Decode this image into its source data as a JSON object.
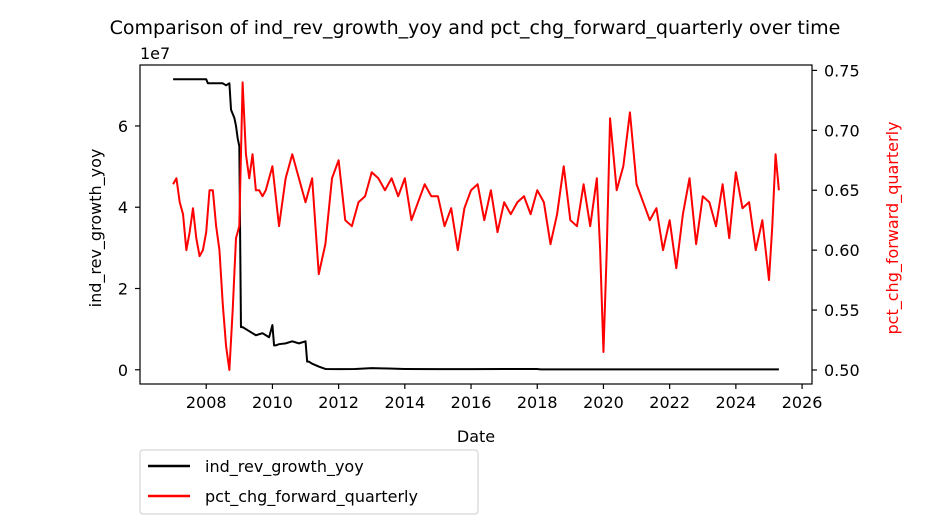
{
  "chart_data": {
    "type": "line",
    "title": "Comparison of ind_rev_growth_yoy and pct_chg_forward_quarterly over time",
    "xlabel": "Date",
    "ylabel_left": "ind_rev_growth_yoy",
    "ylabel_right": "pct_chg_forward_quarterly",
    "left_axis_offset_label": "1e7",
    "xlim": [
      2006.0,
      2026.3
    ],
    "ylim_left": [
      -3500000,
      75000000
    ],
    "ylim_right": [
      0.4883,
      0.7545
    ],
    "x_ticks": [
      "2008",
      "2010",
      "2012",
      "2014",
      "2016",
      "2018",
      "2020",
      "2022",
      "2024",
      "2026"
    ],
    "x_tick_values": [
      2008,
      2010,
      2012,
      2014,
      2016,
      2018,
      2020,
      2022,
      2024,
      2026
    ],
    "y_left_ticks": [
      "0",
      "2",
      "4",
      "6"
    ],
    "y_left_tick_values": [
      0,
      20000000,
      40000000,
      60000000
    ],
    "y_right_ticks": [
      "0.50",
      "0.55",
      "0.60",
      "0.65",
      "0.70",
      "0.75"
    ],
    "y_right_tick_values": [
      0.5,
      0.55,
      0.6,
      0.65,
      0.7,
      0.75
    ],
    "grid": false,
    "legend_position": "below-left",
    "colors": {
      "ind_rev_growth_yoy": "#000000",
      "pct_chg_forward_quarterly": "#ff0000"
    },
    "series": [
      {
        "name": "ind_rev_growth_yoy",
        "axis": "left",
        "x": [
          2007.0,
          2008.0,
          2008.05,
          2008.5,
          2008.6,
          2008.7,
          2008.75,
          2008.85,
          2008.9,
          2008.95,
          2009.0,
          2009.05,
          2009.1,
          2009.3,
          2009.5,
          2009.7,
          2009.9,
          2010.0,
          2010.05,
          2010.1,
          2010.2,
          2010.4,
          2010.6,
          2010.8,
          2011.0,
          2011.05,
          2011.1,
          2011.2,
          2011.4,
          2011.6,
          2012.0,
          2012.5,
          2013.0,
          2013.5,
          2014.0,
          2015.0,
          2016.0,
          2017.0,
          2018.0,
          2018.1,
          2019.0,
          2020.0,
          2021.0,
          2022.0,
          2023.0,
          2024.0,
          2025.0,
          2025.3
        ],
        "values": [
          71500000,
          71500000,
          70500000,
          70500000,
          70000000,
          70500000,
          64000000,
          62000000,
          60000000,
          57000000,
          55000000,
          10500000,
          10500000,
          9500000,
          8500000,
          9000000,
          8000000,
          11000000,
          6000000,
          6000000,
          6300000,
          6500000,
          7000000,
          6500000,
          7000000,
          2000000,
          2000000,
          1500000,
          800000,
          200000,
          150000,
          200000,
          400000,
          300000,
          200000,
          150000,
          150000,
          200000,
          200000,
          100000,
          100000,
          100000,
          100000,
          100000,
          100000,
          100000,
          100000,
          100000
        ]
      },
      {
        "name": "pct_chg_forward_quarterly",
        "axis": "right",
        "x": [
          2007.0,
          2007.1,
          2007.2,
          2007.3,
          2007.4,
          2007.5,
          2007.6,
          2007.7,
          2007.8,
          2007.9,
          2008.0,
          2008.1,
          2008.2,
          2008.3,
          2008.4,
          2008.5,
          2008.6,
          2008.7,
          2008.8,
          2008.9,
          2009.0,
          2009.1,
          2009.2,
          2009.3,
          2009.4,
          2009.5,
          2009.6,
          2009.7,
          2009.8,
          2009.9,
          2010.0,
          2010.2,
          2010.4,
          2010.6,
          2010.8,
          2011.0,
          2011.2,
          2011.4,
          2011.6,
          2011.8,
          2012.0,
          2012.2,
          2012.4,
          2012.6,
          2012.8,
          2013.0,
          2013.2,
          2013.4,
          2013.6,
          2013.8,
          2014.0,
          2014.2,
          2014.4,
          2014.6,
          2014.8,
          2015.0,
          2015.2,
          2015.4,
          2015.6,
          2015.8,
          2016.0,
          2016.2,
          2016.4,
          2016.6,
          2016.8,
          2017.0,
          2017.2,
          2017.4,
          2017.6,
          2017.8,
          2018.0,
          2018.2,
          2018.4,
          2018.6,
          2018.8,
          2019.0,
          2019.2,
          2019.4,
          2019.6,
          2019.8,
          2019.9,
          2020.0,
          2020.1,
          2020.2,
          2020.4,
          2020.6,
          2020.8,
          2021.0,
          2021.2,
          2021.4,
          2021.6,
          2021.8,
          2022.0,
          2022.2,
          2022.4,
          2022.6,
          2022.8,
          2023.0,
          2023.2,
          2023.4,
          2023.6,
          2023.8,
          2024.0,
          2024.2,
          2024.4,
          2024.6,
          2024.8,
          2025.0,
          2025.1,
          2025.2,
          2025.3
        ],
        "values": [
          0.655,
          0.66,
          0.64,
          0.63,
          0.6,
          0.615,
          0.635,
          0.61,
          0.595,
          0.6,
          0.615,
          0.65,
          0.65,
          0.62,
          0.6,
          0.555,
          0.52,
          0.5,
          0.55,
          0.61,
          0.62,
          0.74,
          0.68,
          0.66,
          0.68,
          0.65,
          0.65,
          0.645,
          0.65,
          0.66,
          0.67,
          0.62,
          0.66,
          0.68,
          0.66,
          0.64,
          0.66,
          0.58,
          0.605,
          0.66,
          0.675,
          0.625,
          0.62,
          0.64,
          0.645,
          0.665,
          0.66,
          0.65,
          0.66,
          0.645,
          0.66,
          0.625,
          0.64,
          0.655,
          0.645,
          0.645,
          0.62,
          0.635,
          0.6,
          0.635,
          0.65,
          0.655,
          0.625,
          0.65,
          0.615,
          0.64,
          0.63,
          0.64,
          0.645,
          0.63,
          0.65,
          0.64,
          0.605,
          0.63,
          0.67,
          0.625,
          0.62,
          0.655,
          0.62,
          0.66,
          0.6,
          0.515,
          0.6,
          0.71,
          0.65,
          0.67,
          0.715,
          0.655,
          0.64,
          0.625,
          0.635,
          0.6,
          0.625,
          0.585,
          0.63,
          0.66,
          0.605,
          0.645,
          0.64,
          0.62,
          0.655,
          0.61,
          0.665,
          0.635,
          0.64,
          0.6,
          0.625,
          0.575,
          0.62,
          0.68,
          0.65
        ]
      }
    ]
  }
}
